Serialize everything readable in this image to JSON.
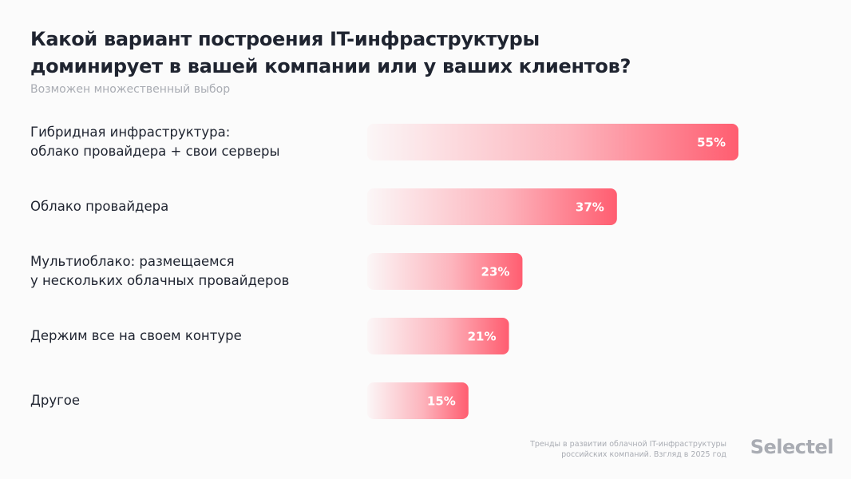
{
  "chart_data": {
    "type": "bar",
    "orientation": "horizontal",
    "title": "Какой вариант построения IT-инфраструктуры\nдоминирует в вашей компании или у ваших клиентов?",
    "subtitle": "Возможен множественный выбор",
    "categories": [
      "Гибридная инфраструктура:\nоблако провайдера + свои серверы",
      "Облако провайдера",
      "Мультиоблако: размещаемся\nу нескольких облачных провайдеров",
      "Держим все на своем контуре",
      "Другое"
    ],
    "values": [
      55,
      37,
      23,
      21,
      15
    ],
    "value_labels": [
      "55%",
      "37%",
      "23%",
      "21%",
      "15%"
    ],
    "color": "#ff5d70",
    "source": "Тренды в развитии облачной IT-инфраструктуры\nроссийских компаний. Взгляд в 2025 год",
    "brand": "Selectel"
  }
}
